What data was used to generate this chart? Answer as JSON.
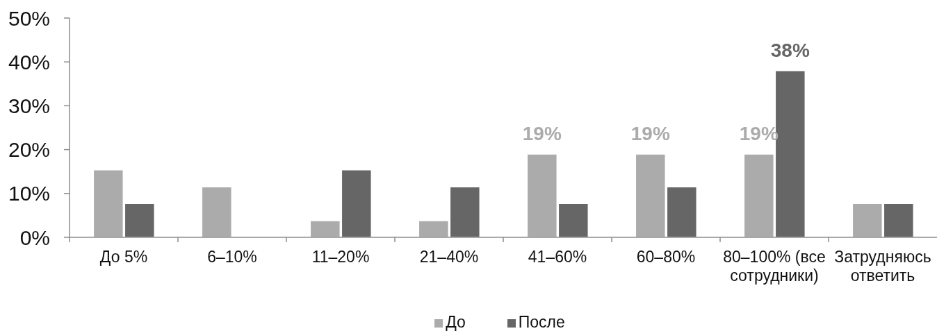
{
  "chart_data": {
    "type": "bar",
    "categories": [
      "До 5%",
      "6–10%",
      "11–20%",
      "21–40%",
      "41–60%",
      "60–80%",
      "80–100% (все сотрудники)",
      "Затрудняюсь ответить"
    ],
    "series": [
      {
        "name": "До",
        "color": "#ababab",
        "values": [
          15.4,
          11.5,
          3.8,
          3.8,
          19,
          19,
          19,
          7.7
        ],
        "value_labels": [
          null,
          null,
          null,
          null,
          "19%",
          "19%",
          "19%",
          null
        ]
      },
      {
        "name": "После",
        "color": "#666666",
        "values": [
          7.7,
          0,
          15.4,
          11.5,
          7.7,
          11.5,
          38,
          7.7
        ],
        "value_labels": [
          null,
          null,
          null,
          null,
          null,
          null,
          "38%",
          null
        ]
      }
    ],
    "ylim": [
      0,
      50
    ],
    "yticks": [
      {
        "value": 0,
        "label": "0%"
      },
      {
        "value": 10,
        "label": "10%"
      },
      {
        "value": 20,
        "label": "20%"
      },
      {
        "value": 30,
        "label": "30%"
      },
      {
        "value": 40,
        "label": "40%"
      },
      {
        "value": 50,
        "label": "50%"
      }
    ],
    "legend": "bottom"
  }
}
